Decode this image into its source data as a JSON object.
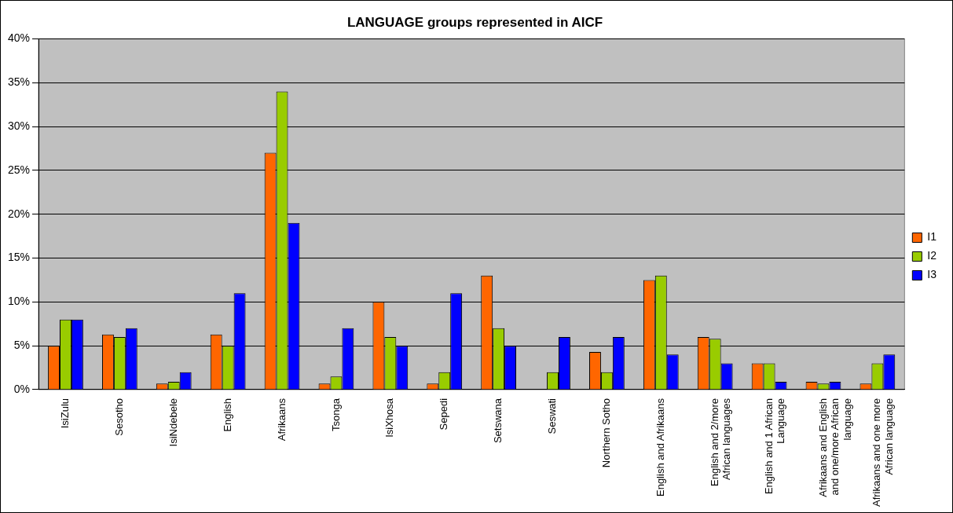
{
  "chart_data": {
    "type": "bar",
    "title": "LANGUAGE groups represented in AICF",
    "categories": [
      "IsiZulu",
      "Sesotho",
      "IsiNdebele",
      "English",
      "Afrikaans",
      "Tsonga",
      "IsiXhosa",
      "Sepedi",
      "Setswana",
      "Seswati",
      "Northern Sotho",
      "English and Afrikaans",
      "English and 2/more African languages",
      "English and 1 African Language",
      "Afrikaans and English and one/more African language",
      "Afrikaans and one more African language"
    ],
    "series": [
      {
        "name": "I1",
        "color": "#ff6600",
        "values": [
          5,
          6.3,
          0.7,
          6.3,
          27,
          0.7,
          10,
          0.7,
          13,
          0,
          4.3,
          12.5,
          6,
          3,
          0.9,
          0.7
        ]
      },
      {
        "name": "I2",
        "color": "#99cc00",
        "values": [
          8,
          6,
          0.9,
          5,
          34,
          1.5,
          6,
          2,
          7,
          2,
          2,
          13,
          5.8,
          3,
          0.7,
          3
        ]
      },
      {
        "name": "I3",
        "color": "#0000ff",
        "values": [
          8,
          7,
          2,
          11,
          19,
          7,
          5,
          11,
          5,
          6,
          6,
          4,
          3,
          0.9,
          0.9,
          4
        ]
      }
    ],
    "ylim": [
      0,
      40
    ],
    "yticks": [
      {
        "value": 0,
        "label": "0%"
      },
      {
        "value": 5,
        "label": "5%"
      },
      {
        "value": 10,
        "label": "10%"
      },
      {
        "value": 15,
        "label": "15%"
      },
      {
        "value": 20,
        "label": "20%"
      },
      {
        "value": 25,
        "label": "25%"
      },
      {
        "value": 30,
        "label": "30%"
      },
      {
        "value": 35,
        "label": "35%"
      },
      {
        "value": 40,
        "label": "40%"
      }
    ],
    "grid": "y",
    "legend": "right"
  }
}
